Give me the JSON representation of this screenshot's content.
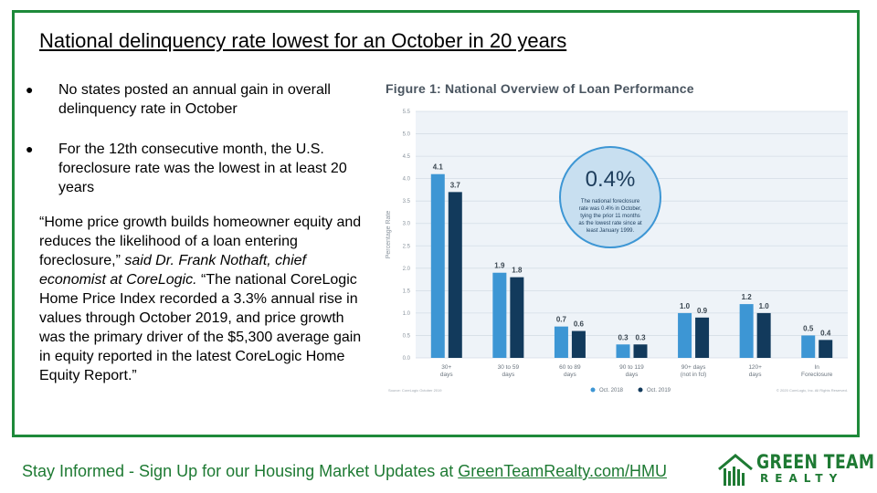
{
  "slide": {
    "title": "National delinquency rate lowest for an October in 20 years",
    "bullets": [
      "No states posted an annual gain in overall delinquency rate in October",
      "For the 12th consecutive month, the U.S. foreclosure rate was the lowest in at least 20 years"
    ],
    "bullet_glyph": "●",
    "quote_part1": "“Home price growth builds homeowner equity and reduces the likelihood of a loan entering foreclosure,”",
    "quote_attribution": "said Dr. Frank Nothaft, chief economist at CoreLogic.",
    "quote_part2": "“The national CoreLogic Home Price Index recorded a 3.3% annual rise in values through October 2019, and price growth was the primary driver of the $5,300 average gain in equity reported in the latest CoreLogic Home Equity Report.”"
  },
  "footer": {
    "prefix": "Stay Informed - Sign Up for our Housing Market Updates at ",
    "link": "GreenTeamRealty.com/HMU"
  },
  "logo": {
    "line1": "GREEN TEAM",
    "line2": "REALTY"
  },
  "colors": {
    "frame": "#1e8a3a",
    "brand_green": "#1e7a33",
    "series_2018": "#3d96d4",
    "series_2019": "#123a5c",
    "callout_fill": "#c8dff0",
    "callout_stroke": "#3d96d4",
    "plot_bg": "#eef3f8"
  },
  "chart_data": {
    "type": "bar",
    "title": "Figure 1: National Overview of Loan Performance",
    "ylabel": "Percentage Rate",
    "xlabel": "",
    "ylim": [
      0,
      5.5
    ],
    "yticks": [
      "0.0",
      "0.5",
      "1.0",
      "1.5",
      "2.0",
      "2.5",
      "3.0",
      "3.5",
      "4.0",
      "4.5",
      "5.0",
      "5.5"
    ],
    "categories": [
      [
        "30+",
        "days"
      ],
      [
        "30 to 59",
        "days"
      ],
      [
        "60 to 89",
        "days"
      ],
      [
        "90 to 119",
        "days"
      ],
      [
        "90+ days",
        "(not in fcl)"
      ],
      [
        "120+",
        "days"
      ],
      [
        "In",
        "Foreclosure"
      ]
    ],
    "series": [
      {
        "name": "Oct. 2018",
        "values": [
          4.1,
          1.9,
          0.7,
          0.3,
          1.0,
          1.2,
          0.5
        ]
      },
      {
        "name": "Oct. 2019",
        "values": [
          3.7,
          1.8,
          0.6,
          0.3,
          0.9,
          1.0,
          0.4
        ]
      }
    ],
    "grid": true,
    "legend": "bottom",
    "callout": {
      "value": "0.4%",
      "text": [
        "The national foreclosure",
        "rate was 0.4% in October,",
        "tying the prior 11 months",
        "as the lowest rate since at",
        "least January 1999."
      ]
    },
    "source": "Source: CoreLogic October 2019",
    "copyright": "© 2020 CoreLogic, Inc. All Rights Reserved."
  }
}
